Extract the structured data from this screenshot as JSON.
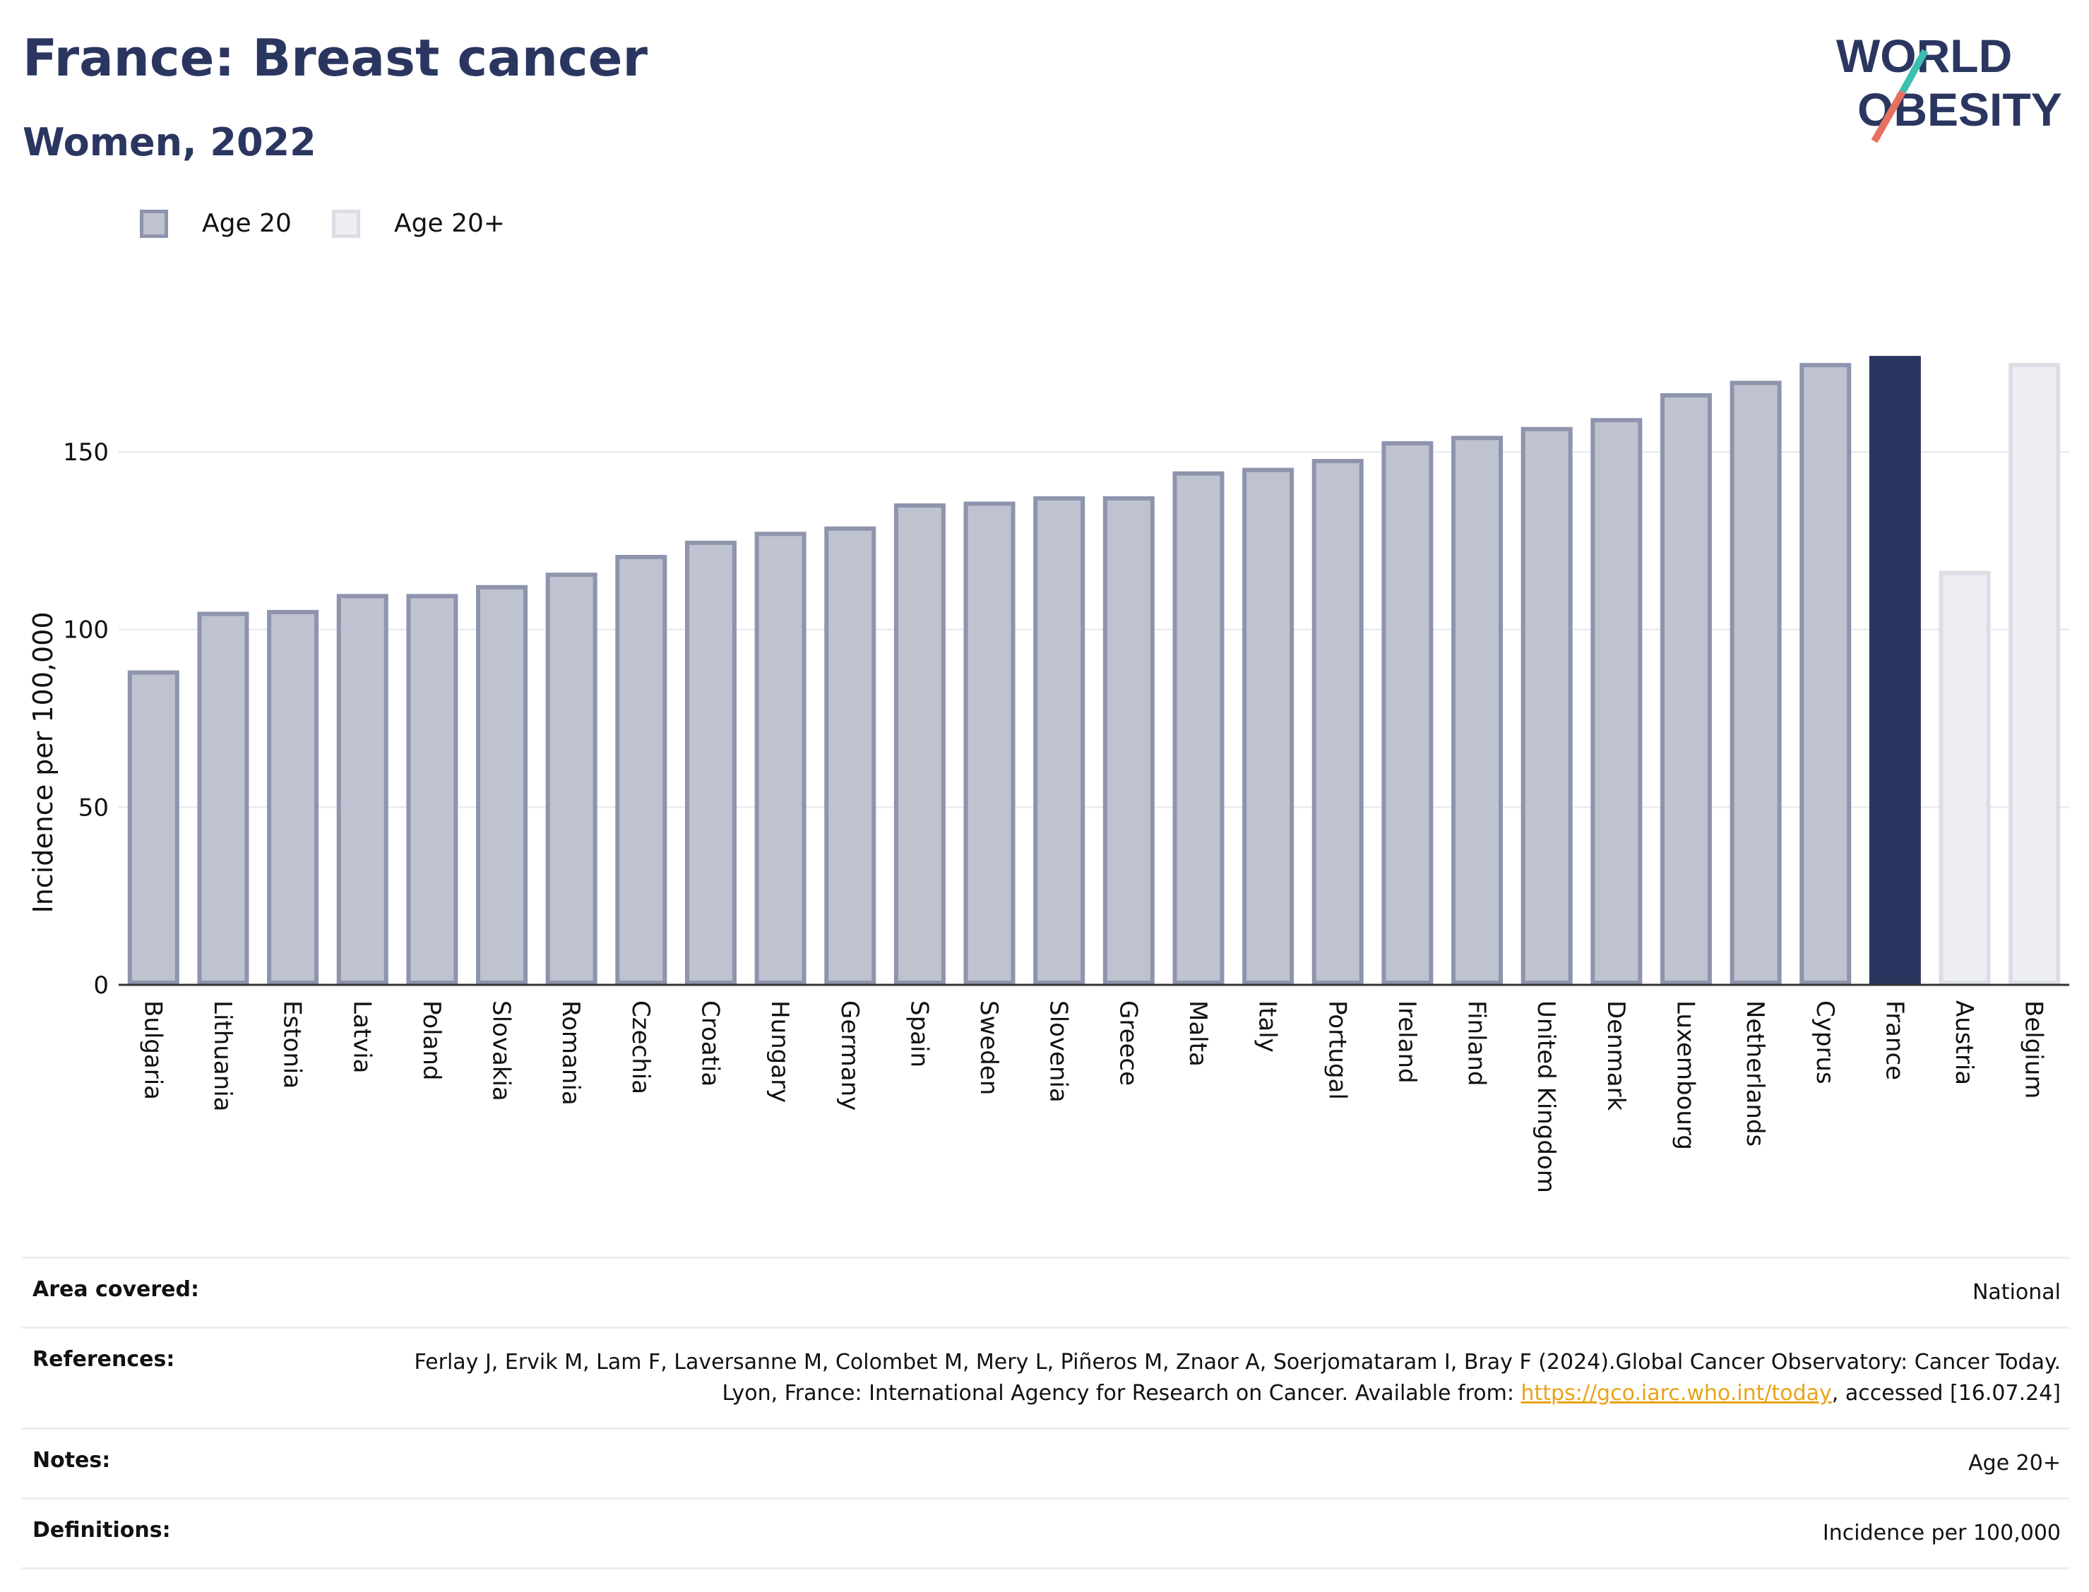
{
  "header": {
    "title": "France: Breast cancer",
    "subtitle": "Women, 2022"
  },
  "logo": {
    "line1": "WORLD",
    "line2": "OBESITY"
  },
  "legend": {
    "items": [
      {
        "label": "Age 20",
        "color": "#bfc2cf",
        "border": "#8e94ad"
      },
      {
        "label": "Age 20+",
        "color": "#eeeff3",
        "border": "#dcdee6"
      }
    ]
  },
  "colors": {
    "age20_fill": "#bfc2cf",
    "age20_border": "#8e94ad",
    "age20plus_fill": "#eeeff3",
    "age20plus_border": "#dcdee6",
    "highlight": "#2b3660",
    "gridline": "#e6e7ee",
    "axis": "#333333"
  },
  "chart_data": {
    "type": "bar",
    "title": "France: Breast cancer",
    "subtitle": "Women, 2022",
    "xlabel": "",
    "ylabel": "Incidence per 100,000",
    "ylim": [
      0,
      180
    ],
    "yticks": [
      0,
      50,
      100,
      150
    ],
    "grid": true,
    "legend_position": "top-left",
    "categories": [
      "Bulgaria",
      "Lithuania",
      "Estonia",
      "Latvia",
      "Poland",
      "Slovakia",
      "Romania",
      "Czechia",
      "Croatia",
      "Hungary",
      "Germany",
      "Spain",
      "Sweden",
      "Slovenia",
      "Greece",
      "Malta",
      "Italy",
      "Portugal",
      "Ireland",
      "Finland",
      "United Kingdom",
      "Denmark",
      "Luxembourg",
      "Netherlands",
      "Cyprus",
      "France",
      "Austria",
      "Belgium"
    ],
    "values": [
      88.5,
      105,
      105.5,
      110,
      110,
      112.5,
      116,
      121,
      125,
      127.5,
      129,
      135.5,
      136,
      137.5,
      137.5,
      144.5,
      145.5,
      148,
      153,
      154.5,
      157,
      159.5,
      166.5,
      170,
      175,
      177,
      116.5,
      175
    ],
    "series_type": [
      "Age 20",
      "Age 20",
      "Age 20",
      "Age 20",
      "Age 20",
      "Age 20",
      "Age 20",
      "Age 20",
      "Age 20",
      "Age 20",
      "Age 20",
      "Age 20",
      "Age 20",
      "Age 20",
      "Age 20",
      "Age 20",
      "Age 20",
      "Age 20",
      "Age 20",
      "Age 20",
      "Age 20",
      "Age 20",
      "Age 20",
      "Age 20",
      "Age 20",
      "highlight",
      "Age 20+",
      "Age 20+"
    ]
  },
  "info": {
    "rows": [
      {
        "key": "Area covered:",
        "value": "National"
      },
      {
        "key": "References:",
        "value_pre": "Ferlay J, Ervik M, Lam F, Laversanne M, Colombet M, Mery L, Piñeros M, Znaor A, Soerjomataram I, Bray F (2024).Global Cancer Observatory: Cancer Today. Lyon, France: International Agency for Research on Cancer. Available from: ",
        "link": "https://gco.iarc.who.int/today",
        "value_post": ", accessed [16.07.24]"
      },
      {
        "key": "Notes:",
        "value": "Age 20+"
      },
      {
        "key": "Definitions:",
        "value": "Incidence per 100,000"
      }
    ]
  }
}
